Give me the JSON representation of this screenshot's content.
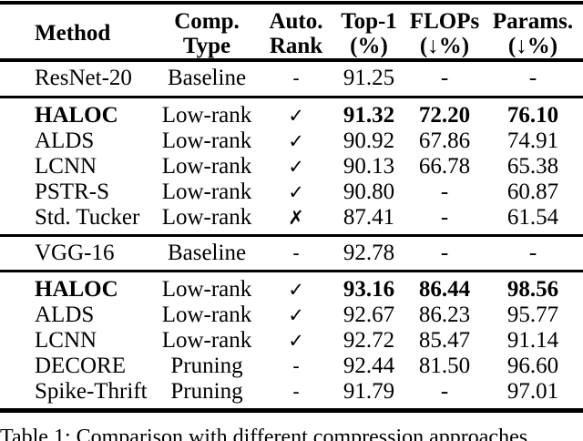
{
  "page": {
    "background_color": "#ffffff",
    "text_color": "#000000"
  },
  "caption": "Table 1: Comparison with different compression approaches",
  "table": {
    "headers": [
      {
        "line1": "Method",
        "line2": ""
      },
      {
        "line1": "Comp.",
        "line2": "Type"
      },
      {
        "line1": "Auto.",
        "line2": "Rank"
      },
      {
        "line1": "Top-1",
        "line2": "(%)"
      },
      {
        "line1": "FLOPs",
        "line2": "(↓%)"
      },
      {
        "line1": "Params.",
        "line2": "(↓%)"
      }
    ],
    "sections": [
      {
        "rows": [
          {
            "method": "ResNet-20",
            "comp_type": "Baseline",
            "auto_rank": "-",
            "top1": "91.25",
            "flops": "-",
            "params": "-",
            "emphasis": false
          }
        ]
      },
      {
        "rows": [
          {
            "method": "HALOC",
            "comp_type": "Low-rank",
            "auto_rank": "✓",
            "top1": "91.32",
            "flops": "72.20",
            "params": "76.10",
            "emphasis": true
          },
          {
            "method": "ALDS",
            "comp_type": "Low-rank",
            "auto_rank": "✓",
            "top1": "90.92",
            "flops": "67.86",
            "params": "74.91",
            "emphasis": false
          },
          {
            "method": "LCNN",
            "comp_type": "Low-rank",
            "auto_rank": "✓",
            "top1": "90.13",
            "flops": "66.78",
            "params": "65.38",
            "emphasis": false
          },
          {
            "method": "PSTR-S",
            "comp_type": "Low-rank",
            "auto_rank": "✓",
            "top1": "90.80",
            "flops": "-",
            "params": "60.87",
            "emphasis": false
          },
          {
            "method": "Std. Tucker",
            "comp_type": "Low-rank",
            "auto_rank": "✗",
            "top1": "87.41",
            "flops": "-",
            "params": "61.54",
            "emphasis": false
          }
        ]
      },
      {
        "rows": [
          {
            "method": "VGG-16",
            "comp_type": "Baseline",
            "auto_rank": "-",
            "top1": "92.78",
            "flops": "-",
            "params": "-",
            "emphasis": false
          }
        ]
      },
      {
        "rows": [
          {
            "method": "HALOC",
            "comp_type": "Low-rank",
            "auto_rank": "✓",
            "top1": "93.16",
            "flops": "86.44",
            "params": "98.56",
            "emphasis": true
          },
          {
            "method": "ALDS",
            "comp_type": "Low-rank",
            "auto_rank": "✓",
            "top1": "92.67",
            "flops": "86.23",
            "params": "95.77",
            "emphasis": false
          },
          {
            "method": "LCNN",
            "comp_type": "Low-rank",
            "auto_rank": "✓",
            "top1": "92.72",
            "flops": "85.47",
            "params": "91.14",
            "emphasis": false
          },
          {
            "method": "DECORE",
            "comp_type": "Pruning",
            "auto_rank": "-",
            "top1": "92.44",
            "flops": "81.50",
            "params": "96.60",
            "emphasis": false
          },
          {
            "method": "Spike-Thrift",
            "comp_type": "Pruning",
            "auto_rank": "-",
            "top1": "91.79",
            "flops": "-",
            "params": "97.01",
            "emphasis": false
          }
        ]
      }
    ]
  }
}
